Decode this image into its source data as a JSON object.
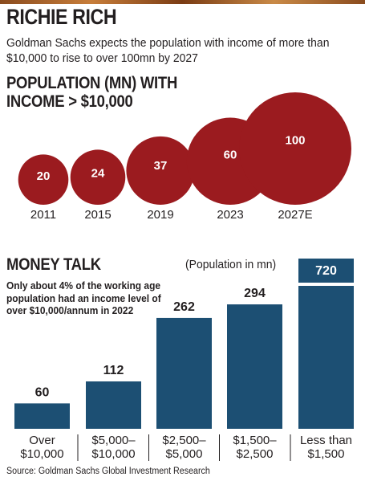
{
  "header": {
    "title": "RICHIE RICH",
    "subtitle": "Goldman Sachs expects the population with income of more than $10,000 to rise to over 100mn by 2027"
  },
  "footer": {
    "source": "Source: Goldman Sachs Global Investment Research"
  },
  "colors": {
    "bubble": "#9b1b1f",
    "bar": "#1c4f73",
    "text": "#231f20"
  },
  "chart_data": [
    {
      "type": "bubble",
      "title": "POPULATION (MN) WITH INCOME > $10,000",
      "categories": [
        "2011",
        "2015",
        "2019",
        "2023",
        "2027E"
      ],
      "values": [
        20,
        24,
        37,
        60,
        100
      ],
      "value_labels": [
        "20",
        "24",
        "37",
        "60",
        "100"
      ]
    },
    {
      "type": "bar",
      "title": "MONEY TALK",
      "unit_note": "(Population in mn)",
      "annotation": "Only about 4% of the working age population had an income level of over $10,000/annum in 2022",
      "categories": [
        [
          "Over",
          "$10,000"
        ],
        [
          "$5,000–",
          "$10,000"
        ],
        [
          "$2,500–",
          "$5,000"
        ],
        [
          "$1,500–",
          "$2,500"
        ],
        [
          "Less than",
          "$1,500"
        ]
      ],
      "values": [
        60,
        112,
        262,
        294,
        720
      ],
      "value_labels": [
        "60",
        "112",
        "262",
        "294",
        "720"
      ],
      "axis_break_on_bar": 4
    }
  ]
}
